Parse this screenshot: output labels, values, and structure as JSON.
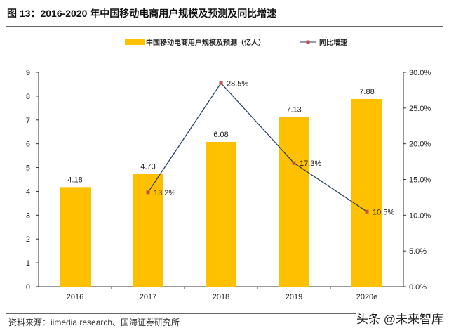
{
  "title": "图 13：2016-2020 年中国移动电商用户规模及预测及同比增速",
  "source": "资料来源：iimedia research、国海证券研究所",
  "watermark": "头条 @未来智库",
  "chart_data": {
    "type": "bar+line",
    "categories": [
      "2016",
      "2017",
      "2018",
      "2019",
      "2020e"
    ],
    "series": [
      {
        "name": "中国移动电商用户规模及预测（亿人）",
        "type": "bar",
        "axis": "left",
        "color": "#FFC000",
        "values": [
          4.18,
          4.73,
          6.08,
          7.13,
          7.88
        ],
        "labels": [
          "4.18",
          "4.73",
          "6.08",
          "7.13",
          "7.88"
        ]
      },
      {
        "name": "同比增速",
        "type": "line",
        "axis": "right",
        "color": "#1F3864",
        "marker_color": "#C0504D",
        "values": [
          null,
          13.2,
          28.5,
          17.3,
          10.5
        ],
        "labels": [
          "",
          "13.2%",
          "28.5%",
          "17.3%",
          "10.5%"
        ]
      }
    ],
    "ylim": [
      0,
      9
    ],
    "yticks": [
      "0",
      "1",
      "2",
      "3",
      "4",
      "5",
      "6",
      "7",
      "8",
      "9"
    ],
    "y2lim": [
      0,
      30
    ],
    "y2ticks": [
      "0.0%",
      "5.0%",
      "10.0%",
      "15.0%",
      "20.0%",
      "25.0%",
      "30.0%"
    ],
    "legend": "top",
    "grid": false
  }
}
